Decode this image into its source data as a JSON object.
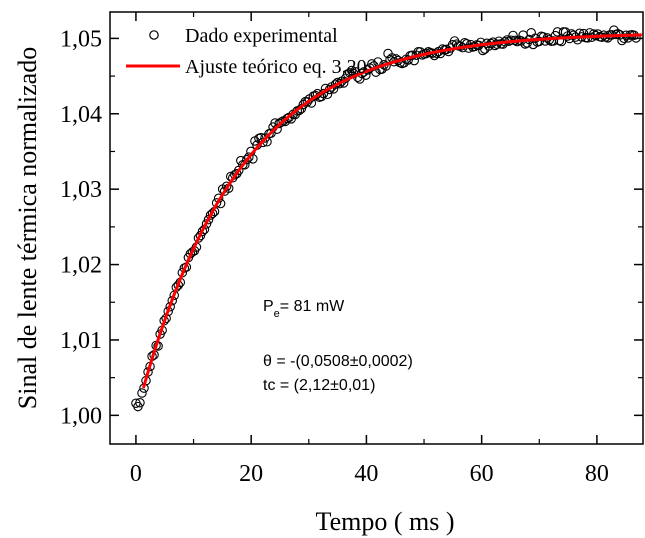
{
  "chart_data": {
    "type": "scatter",
    "xlabel": "Tempo ( ms )",
    "ylabel": "Sinal de lente térmica normalizado",
    "xlim": [
      -4.5,
      88
    ],
    "ylim": [
      0.9962,
      1.0535
    ],
    "x_ticks": [
      0,
      20,
      40,
      60,
      80
    ],
    "x_tick_labels": [
      "0",
      "20",
      "40",
      "60",
      "80"
    ],
    "y_ticks": [
      1.0,
      1.01,
      1.02,
      1.03,
      1.04,
      1.05
    ],
    "y_tick_labels": [
      "1,00",
      "1,01",
      "1,02",
      "1,03",
      "1,04",
      "1,05"
    ],
    "grid": false,
    "legend_position": "top-left",
    "series": [
      {
        "name": "Dado experimental",
        "kind": "scatter",
        "marker": "open-circle",
        "color": "#000000",
        "x_start": 0,
        "x_step": 0.35,
        "count": 249,
        "model": {
          "A": 1.0508,
          "tau": 17.5
        },
        "noise": 0.00075
      },
      {
        "name": "Ajuste teórico eq. 3.20",
        "kind": "line",
        "color": "#ff0000",
        "x_start": 1.3,
        "x_end": 88,
        "model": {
          "A": 1.0508,
          "tau": 17.5
        }
      }
    ],
    "annotations": {
      "pe_main": "P",
      "pe_sub": "e",
      "pe_rest": "= 81 mW",
      "theta": "θ = -(0,0508±0,0002)",
      "tc": "tc = (2,12±0,01)"
    }
  }
}
